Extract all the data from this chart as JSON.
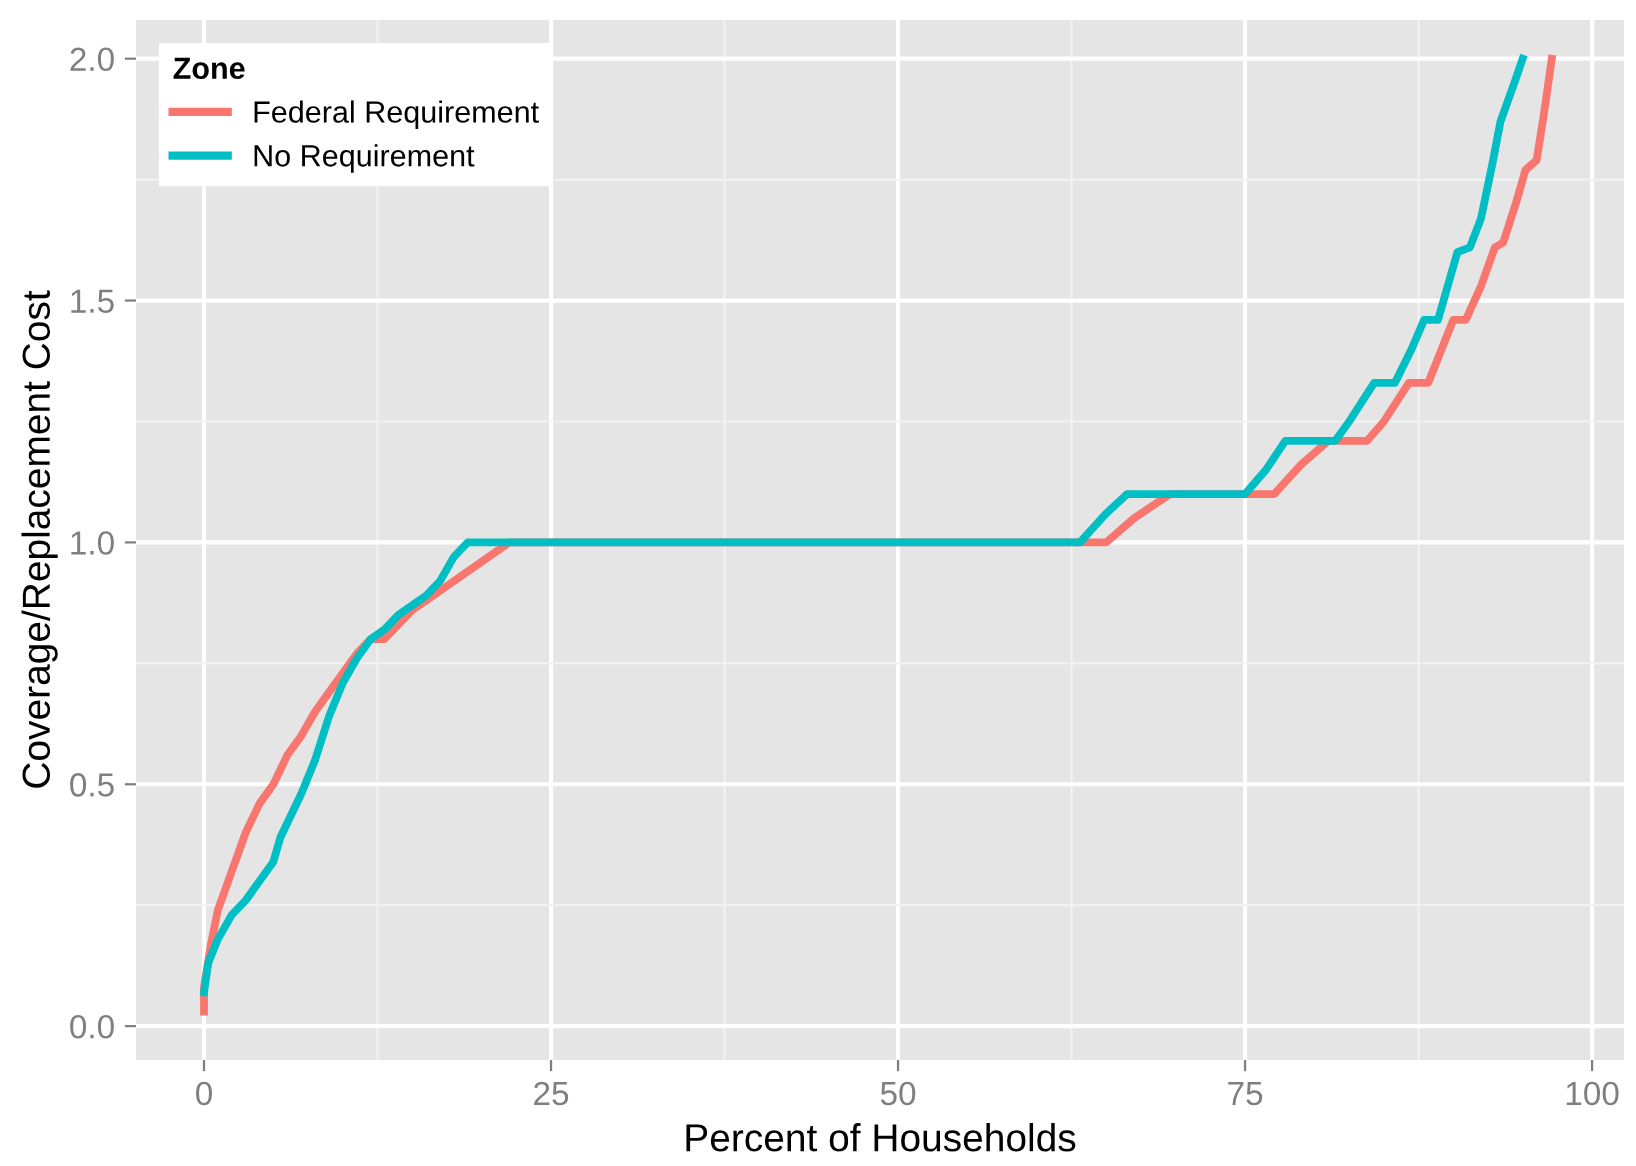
{
  "chart_data": {
    "type": "line",
    "xlabel": "Percent of Households",
    "ylabel": "Coverage/Replacement Cost",
    "legend_title": "Zone",
    "legend": "top left",
    "grid": true,
    "xlim": [
      -4.9,
      102.3
    ],
    "ylim": [
      -0.07,
      2.08
    ],
    "xticks": [
      0,
      25,
      50,
      75,
      100
    ],
    "yticks": [
      {
        "value": 0,
        "label": "0.0"
      },
      {
        "value": 0.5,
        "label": "0.5"
      },
      {
        "value": 1,
        "label": "1.0"
      },
      {
        "value": 1.5,
        "label": "1.5"
      },
      {
        "value": 2,
        "label": "2.0"
      }
    ],
    "series": [
      {
        "name": "Federal Requirement",
        "color": "#f8766d",
        "x": [
          0,
          0,
          0.5,
          1,
          2,
          3,
          4,
          5,
          6,
          7,
          8,
          9,
          10,
          11,
          12,
          13,
          14,
          15,
          16,
          18,
          20,
          22,
          63,
          65,
          67,
          69.6,
          77.1,
          79,
          81,
          83.8,
          85,
          86.8,
          88.2,
          90,
          90.9,
          92,
          93,
          93.6,
          94.5,
          95.2,
          96,
          96.5,
          97.1
        ],
        "values": [
          0.03,
          0.08,
          0.17,
          0.24,
          0.32,
          0.4,
          0.46,
          0.5,
          0.56,
          0.6,
          0.65,
          0.69,
          0.73,
          0.77,
          0.8,
          0.8,
          0.83,
          0.86,
          0.88,
          0.92,
          0.96,
          1.0,
          1.0,
          1.0,
          1.05,
          1.1,
          1.1,
          1.16,
          1.21,
          1.21,
          1.25,
          1.33,
          1.33,
          1.46,
          1.46,
          1.53,
          1.61,
          1.62,
          1.7,
          1.77,
          1.79,
          1.88,
          2.0
        ]
      },
      {
        "name": "No Requirement",
        "color": "#00bfc4",
        "x": [
          0,
          0.3,
          1,
          2,
          3,
          4,
          5,
          5.5,
          6,
          7,
          8,
          9,
          10,
          11,
          12,
          13,
          14,
          15,
          16,
          17,
          18,
          19,
          63.1,
          65,
          66.5,
          75,
          76.5,
          77.9,
          81.5,
          82.5,
          84.3,
          85.8,
          87,
          87.9,
          88.9,
          90.3,
          91.2,
          92,
          92.8,
          93.4,
          94.4,
          95
        ],
        "values": [
          0.07,
          0.13,
          0.18,
          0.23,
          0.26,
          0.3,
          0.34,
          0.39,
          0.42,
          0.48,
          0.55,
          0.64,
          0.71,
          0.76,
          0.8,
          0.82,
          0.85,
          0.87,
          0.89,
          0.92,
          0.97,
          1.0,
          1.0,
          1.06,
          1.1,
          1.1,
          1.15,
          1.21,
          1.21,
          1.25,
          1.33,
          1.33,
          1.4,
          1.46,
          1.46,
          1.6,
          1.61,
          1.67,
          1.78,
          1.87,
          1.95,
          2.0
        ]
      }
    ]
  }
}
